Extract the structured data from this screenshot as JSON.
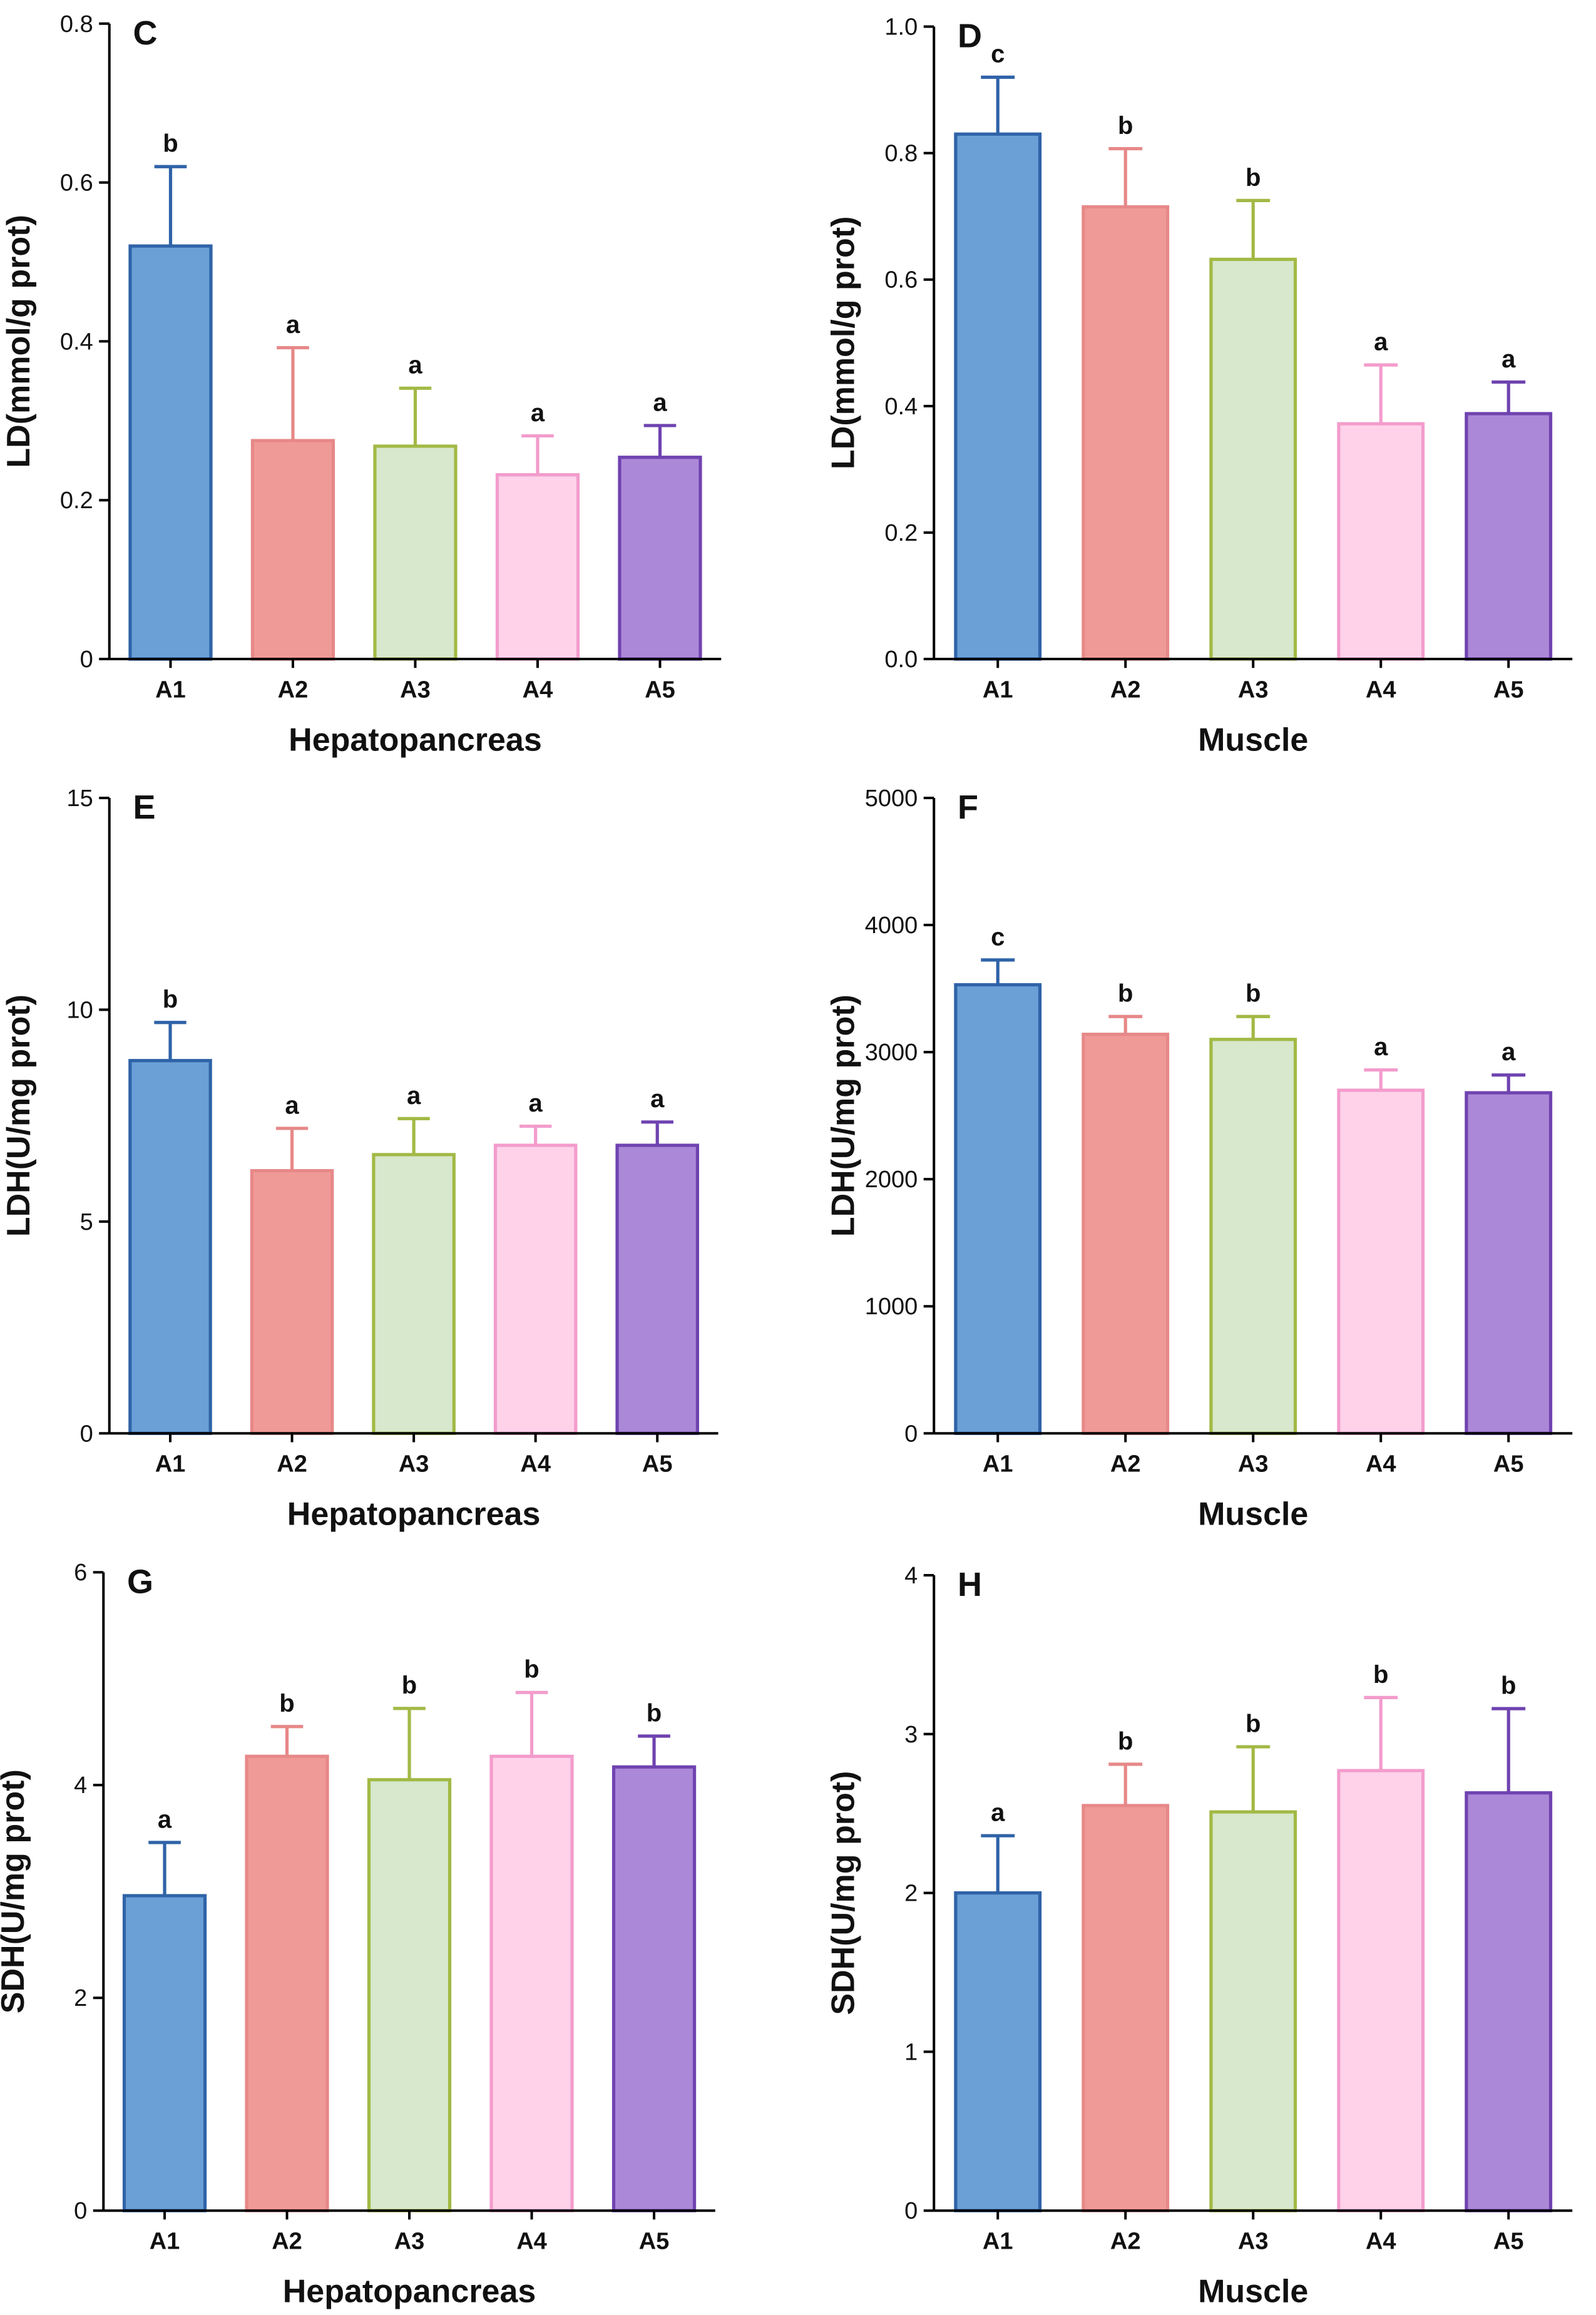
{
  "chart_data": [
    {
      "panel": "C",
      "type": "bar",
      "categories": [
        "A1",
        "A2",
        "A3",
        "A4",
        "A5"
      ],
      "values": [
        0.52,
        0.275,
        0.268,
        0.232,
        0.254
      ],
      "errors": [
        0.1,
        0.117,
        0.073,
        0.049,
        0.04
      ],
      "significance": [
        "b",
        "a",
        "a",
        "a",
        "a"
      ],
      "xlabel": "Hepatopancreas",
      "ylabel": "LD(mmol/g prot)",
      "ylim": [
        0,
        0.8
      ],
      "yticks": [
        0,
        0.2,
        0.4,
        0.6,
        0.8
      ],
      "ytick_labels": [
        "0",
        "0.2",
        "0.4",
        "0.6",
        "0.8"
      ]
    },
    {
      "panel": "D",
      "type": "bar",
      "categories": [
        "A1",
        "A2",
        "A3",
        "A4",
        "A5"
      ],
      "values": [
        0.83,
        0.715,
        0.632,
        0.372,
        0.388
      ],
      "errors": [
        0.09,
        0.092,
        0.093,
        0.093,
        0.05
      ],
      "significance": [
        "c",
        "b",
        "b",
        "a",
        "a"
      ],
      "xlabel": "Muscle",
      "ylabel": "LD(mmol/g prot)",
      "ylim": [
        0,
        1.0
      ],
      "yticks": [
        0,
        0.2,
        0.4,
        0.6,
        0.8,
        1.0
      ],
      "ytick_labels": [
        "0.0",
        "0.2",
        "0.4",
        "0.6",
        "0.8",
        "1.0"
      ]
    },
    {
      "panel": "E",
      "type": "bar",
      "categories": [
        "A1",
        "A2",
        "A3",
        "A4",
        "A5"
      ],
      "values": [
        8.8,
        6.2,
        6.58,
        6.8,
        6.8
      ],
      "errors": [
        0.9,
        1.0,
        0.85,
        0.45,
        0.55
      ],
      "significance": [
        "b",
        "a",
        "a",
        "a",
        "a"
      ],
      "xlabel": "Hepatopancreas",
      "ylabel": "LDH(U/mg prot)",
      "ylim": [
        0,
        15
      ],
      "yticks": [
        0,
        5,
        10,
        15
      ],
      "ytick_labels": [
        "0",
        "5",
        "10",
        "15"
      ]
    },
    {
      "panel": "F",
      "type": "bar",
      "categories": [
        "A1",
        "A2",
        "A3",
        "A4",
        "A5"
      ],
      "values": [
        3530,
        3140,
        3100,
        2700,
        2680
      ],
      "errors": [
        195,
        140,
        180,
        160,
        140
      ],
      "significance": [
        "c",
        "b",
        "b",
        "a",
        "a"
      ],
      "xlabel": "Muscle",
      "ylabel": "LDH(U/mg prot)",
      "ylim": [
        0,
        5000
      ],
      "yticks": [
        0,
        1000,
        2000,
        3000,
        4000,
        5000
      ],
      "ytick_labels": [
        "0",
        "1000",
        "2000",
        "3000",
        "4000",
        "5000"
      ]
    },
    {
      "panel": "G",
      "type": "bar",
      "categories": [
        "A1",
        "A2",
        "A3",
        "A4",
        "A5"
      ],
      "values": [
        2.96,
        4.27,
        4.05,
        4.27,
        4.17
      ],
      "errors": [
        0.5,
        0.28,
        0.67,
        0.6,
        0.29
      ],
      "significance": [
        "a",
        "b",
        "b",
        "b",
        "b"
      ],
      "xlabel": "Hepatopancreas",
      "ylabel": "SDH(U/mg prot)",
      "ylim": [
        0,
        6
      ],
      "yticks": [
        0,
        2,
        4,
        6
      ],
      "ytick_labels": [
        "0",
        "2",
        "4",
        "6"
      ]
    },
    {
      "panel": "H",
      "type": "bar",
      "categories": [
        "A1",
        "A2",
        "A3",
        "A4",
        "A5"
      ],
      "values": [
        2.0,
        2.55,
        2.51,
        2.77,
        2.63
      ],
      "errors": [
        0.36,
        0.26,
        0.41,
        0.46,
        0.53
      ],
      "significance": [
        "a",
        "b",
        "b",
        "b",
        "b"
      ],
      "xlabel": "Muscle",
      "ylabel": "SDH(U/mg prot)",
      "ylim": [
        0,
        4
      ],
      "yticks": [
        0,
        1,
        2,
        3,
        4
      ],
      "ytick_labels": [
        "0",
        "1",
        "2",
        "3",
        "4"
      ]
    }
  ],
  "colors": {
    "bar_fills": [
      "#6aa0d6",
      "#f09a97",
      "#d7e8cc",
      "#ffd2ea",
      "#ac88d8"
    ],
    "bar_strokes": [
      "#2f63a8",
      "#e78888",
      "#a2b945",
      "#f39ccc",
      "#6f43b0"
    ],
    "axis": "#000000"
  }
}
